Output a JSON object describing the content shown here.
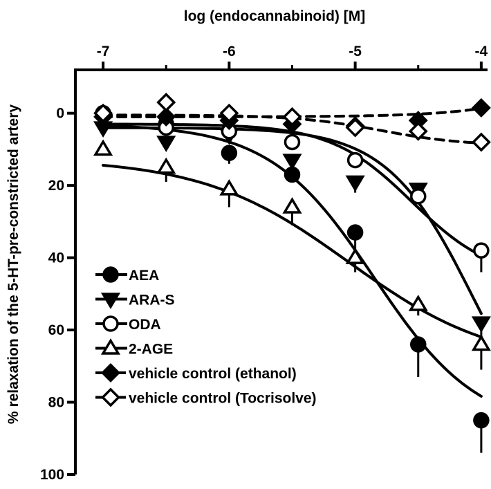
{
  "chart_data": {
    "type": "scatter",
    "title": "log (endocannabinoid) [M]",
    "xlabel": "log (endocannabinoid) [M]",
    "ylabel": "% relaxation of the 5-HT-pre-constricted artery",
    "x_axis_position": "top",
    "y_axis_inverted": true,
    "xlim": [
      -7.22,
      -3.95
    ],
    "ylim": [
      -12,
      100
    ],
    "x_ticks": [
      -7,
      -6,
      -5,
      -4
    ],
    "x_tick_labels": [
      "-7",
      "-6",
      "-5",
      "-4"
    ],
    "y_ticks": [
      0,
      20,
      40,
      60,
      80,
      100
    ],
    "y_tick_labels": [
      "0",
      "20",
      "40",
      "60",
      "80",
      "100"
    ],
    "grid": false,
    "legend_position": "bottom-left",
    "x": [
      -7,
      -6.5,
      -6,
      -5.5,
      -5,
      -4.5,
      -4
    ],
    "series": [
      {
        "name": "AEA",
        "marker": "circle-filled",
        "line": "solid",
        "values": [
          0,
          3,
          11,
          17,
          33,
          64,
          85
        ],
        "errors": [
          0,
          2,
          3,
          2,
          8,
          9,
          9
        ],
        "fit": {
          "bottom": 3,
          "top": 88,
          "logEC50": -4.85,
          "hill": 1.05
        }
      },
      {
        "name": "ARA-S",
        "marker": "triangle-down-filled",
        "line": "solid",
        "values": [
          4,
          8,
          6,
          13,
          19,
          21,
          58
        ],
        "errors": [
          0,
          2,
          2,
          2,
          3,
          3,
          4
        ],
        "fit": {
          "bottom": 4,
          "top": 100,
          "logEC50": -4.05,
          "hill": 1.25
        }
      },
      {
        "name": "ODA",
        "marker": "circle-open",
        "line": "solid",
        "values": [
          0,
          4,
          5,
          8,
          13,
          23,
          38
        ],
        "errors": [
          0,
          2,
          2,
          2,
          2,
          2,
          6
        ],
        "fit": {
          "bottom": 3,
          "top": 46,
          "logEC50": -4.55,
          "hill": 1.35
        }
      },
      {
        "name": "2-AGE",
        "marker": "triangle-up-open",
        "line": "solid",
        "values": [
          10,
          15,
          21,
          26,
          40,
          53,
          64
        ],
        "errors": [
          0,
          4,
          5,
          5,
          4,
          3,
          7
        ],
        "fit": {
          "bottom": 12.5,
          "top": 70,
          "logEC50": -5.05,
          "hill": 0.75
        }
      },
      {
        "name": "vehicle control (ethanol)",
        "marker": "diamond-filled",
        "line": "dashed",
        "values": [
          1,
          1,
          2,
          3,
          3.5,
          2,
          -1.5
        ],
        "errors": [
          0,
          0,
          0,
          0,
          1,
          1,
          0
        ],
        "fit": {
          "bottom": 1,
          "top": -150,
          "logEC50": -2.2,
          "hill": 1.0
        }
      },
      {
        "name": "vehicle control (Tocrisolve)",
        "marker": "diamond-open",
        "line": "dashed",
        "values": [
          0,
          -3,
          0,
          1,
          4,
          5,
          8
        ],
        "errors": [
          0,
          0,
          0,
          0,
          1,
          1,
          0
        ],
        "fit": {
          "bottom": 0.5,
          "top": 9,
          "logEC50": -4.8,
          "hill": 1.3
        }
      }
    ]
  }
}
